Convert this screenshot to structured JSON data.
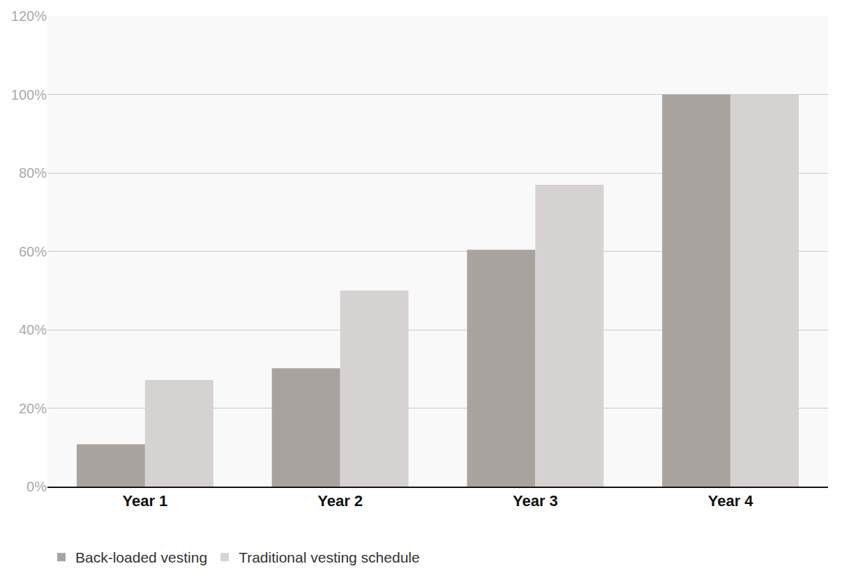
{
  "chart_data": {
    "type": "bar",
    "categories": [
      "Year 1",
      "Year 2",
      "Year 3",
      "Year 4"
    ],
    "series": [
      {
        "name": "Back-loaded vesting",
        "color": "#a8a39f",
        "values": [
          10.8,
          30.2,
          60.4,
          100
        ]
      },
      {
        "name": "Traditional vesting schedule",
        "color": "#d6d2d1",
        "values": [
          27.2,
          50,
          77,
          100
        ]
      }
    ],
    "ylim": [
      0,
      120
    ],
    "yticks": [
      {
        "value": 0,
        "label": "0%"
      },
      {
        "value": 20,
        "label": "20%"
      },
      {
        "value": 40,
        "label": "40%"
      },
      {
        "value": 60,
        "label": "60%"
      },
      {
        "value": 80,
        "label": "80%"
      },
      {
        "value": 100,
        "label": "100%"
      },
      {
        "value": 120,
        "label": "120%"
      }
    ],
    "grid": true,
    "legend": "bottom"
  }
}
